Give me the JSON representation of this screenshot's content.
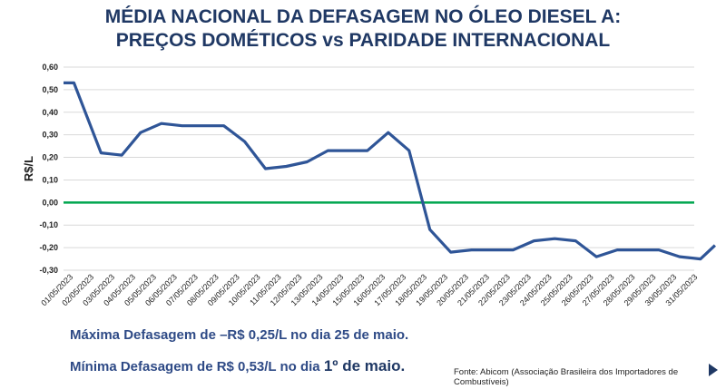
{
  "title_line1": "MÉDIA NACIONAL DA DEFASAGEM NO ÓLEO DIESEL A:",
  "title_line2": "PREÇOS DOMÉTICOS vs PARIDADE INTERNACIONAL",
  "note_max": "Máxima Defasagem de –R$ 0,25/L no dia 25 de maio.",
  "note_min_prefix": "Mínima Defasagem de R$ 0,53/L no dia ",
  "note_min_emph": "1º de maio.",
  "source": "Fonte: Abicom (Associação Brasileira dos Importadores de Combustíveis)",
  "colors": {
    "series": "#2f5597",
    "zero_line": "#00a64f",
    "grid": "#d9d9d9",
    "title": "#1f3864"
  },
  "nav_icon": "arrow-right-icon",
  "chart_data": {
    "type": "line",
    "ylabel": "R$/L",
    "ylim": [
      -0.3,
      0.6
    ],
    "yticks": [
      "0,60",
      "0,50",
      "0,40",
      "0,30",
      "0,20",
      "0,10",
      "0,00",
      "-0,10",
      "-0,20",
      "-0,30"
    ],
    "ytick_values": [
      0.6,
      0.5,
      0.4,
      0.3,
      0.2,
      0.1,
      0.0,
      -0.1,
      -0.2,
      -0.3
    ],
    "categories": [
      "01/05/2023",
      "02/05/2023",
      "03/05/2023",
      "04/05/2023",
      "05/05/2023",
      "06/05/2023",
      "07/05/2023",
      "08/05/2023",
      "09/05/2023",
      "10/05/2023",
      "11/05/2023",
      "12/05/2023",
      "13/05/2023",
      "14/05/2023",
      "15/05/2023",
      "16/05/2023",
      "17/05/2023",
      "18/05/2023",
      "19/05/2023",
      "20/05/2023",
      "21/05/2023",
      "22/05/2023",
      "23/05/2023",
      "24/05/2023",
      "25/05/2023",
      "26/05/2023",
      "27/05/2023",
      "28/05/2023",
      "29/05/2023",
      "30/05/2023",
      "31/05/2023"
    ],
    "x": [
      0,
      0.5,
      1.8,
      2.8,
      3.7,
      4.7,
      5.7,
      6.7,
      7.7,
      8.7,
      9.7,
      10.7,
      11.7,
      12.7,
      13.7,
      14.6,
      15.6,
      16.6,
      17.6,
      18.6,
      19.6,
      20.6,
      21.6,
      22.6,
      23.6,
      24.6,
      25.6,
      26.6,
      27.6,
      28.6,
      29.6,
      30.6,
      31.3
    ],
    "values": [
      0.53,
      0.53,
      0.22,
      0.21,
      0.31,
      0.35,
      0.34,
      0.34,
      0.34,
      0.27,
      0.15,
      0.16,
      0.18,
      0.23,
      0.23,
      0.23,
      0.31,
      0.23,
      -0.12,
      -0.22,
      -0.21,
      -0.21,
      -0.21,
      -0.17,
      -0.16,
      -0.17,
      -0.24,
      -0.21,
      -0.21,
      -0.21,
      -0.24,
      -0.25,
      -0.19
    ],
    "zero_line": true,
    "grid": true
  }
}
